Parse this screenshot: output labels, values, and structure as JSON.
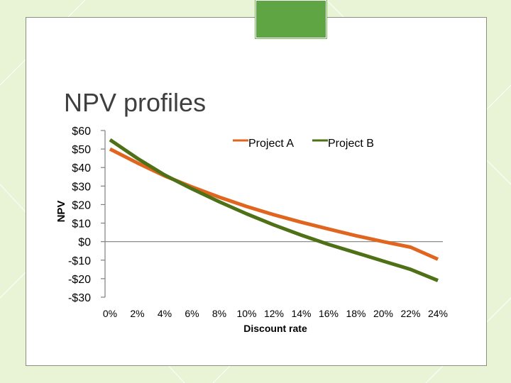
{
  "slide": {
    "title": "NPV profiles",
    "colors": {
      "background": "#e9f3d6",
      "panel": "#ffffff",
      "accent": "#5fa544"
    }
  },
  "chart_data": {
    "type": "line",
    "title": "",
    "xlabel": "Discount rate",
    "ylabel": "NPV",
    "x": [
      0,
      2,
      4,
      6,
      8,
      10,
      12,
      14,
      16,
      18,
      20,
      22,
      24
    ],
    "x_tick_labels": [
      "0%",
      "2%",
      "4%",
      "6%",
      "8%",
      "10%",
      "12%",
      "14%",
      "16%",
      "18%",
      "20%",
      "22%",
      "24%"
    ],
    "y_tick_labels": [
      "$60",
      "$50",
      "$40",
      "$30",
      "$20",
      "$10",
      "$0",
      "-$10",
      "-$20",
      "-$30"
    ],
    "y_ticks": [
      60,
      50,
      40,
      30,
      20,
      10,
      0,
      -10,
      -20,
      -30
    ],
    "ylim": [
      -30,
      60
    ],
    "series": [
      {
        "name": "Project A",
        "color": "#e0651e",
        "values": [
          50,
          42.5,
          35.5,
          29.5,
          24,
          19,
          14.5,
          10.5,
          6.8,
          3.2,
          0,
          -3,
          -9.5
        ]
      },
      {
        "name": "Project B",
        "color": "#4e7016",
        "values": [
          55,
          45,
          36,
          28.5,
          21.5,
          15,
          9,
          3.5,
          -1.5,
          -6,
          -10.5,
          -15,
          -21
        ]
      }
    ],
    "legend_position": "top",
    "grid": false
  }
}
